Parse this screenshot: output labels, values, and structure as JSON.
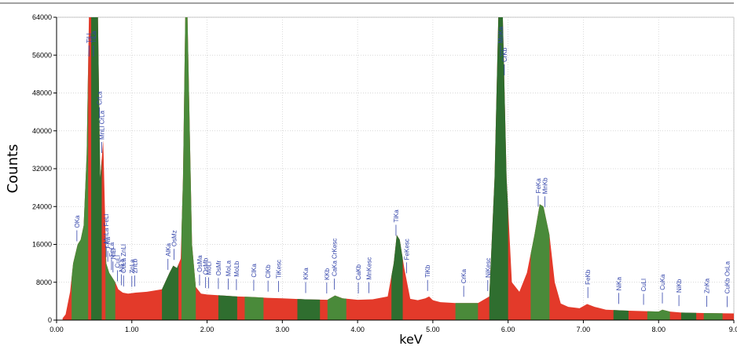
{
  "chart_data": {
    "type": "area",
    "title": "",
    "xlabel": "keV",
    "ylabel": "Counts",
    "xlim": [
      0,
      9
    ],
    "ylim": [
      0,
      64000
    ],
    "grid": true,
    "x_ticks": [
      "0.00",
      "1.00",
      "2.00",
      "3.00",
      "4.00",
      "5.00",
      "6.00",
      "7.00",
      "8.00",
      "9.0"
    ],
    "y_ticks": [
      "0",
      "8000",
      "16000",
      "24000",
      "32000",
      "40000",
      "48000",
      "56000",
      "64000"
    ],
    "colors": {
      "spectrum": "#e33a2a",
      "peak_fill": "#2f6e2f",
      "peak_fill_light": "#4a8a3a",
      "label": "#3344aa",
      "grid": "#cccccc"
    },
    "spectrum": {
      "x": [
        0.08,
        0.12,
        0.18,
        0.22,
        0.28,
        0.32,
        0.36,
        0.4,
        0.43,
        0.46,
        0.49,
        0.52,
        0.55,
        0.58,
        0.62,
        0.66,
        0.7,
        0.74,
        0.78,
        0.82,
        0.88,
        0.95,
        1.05,
        1.2,
        1.4,
        1.5,
        1.55,
        1.6,
        1.65,
        1.68,
        1.71,
        1.74,
        1.77,
        1.8,
        1.85,
        1.92,
        2.0,
        2.2,
        2.4,
        2.6,
        2.8,
        3.0,
        3.3,
        3.6,
        3.7,
        3.8,
        4.0,
        4.2,
        4.4,
        4.48,
        4.52,
        4.56,
        4.62,
        4.7,
        4.8,
        4.9,
        4.95,
        5.0,
        5.1,
        5.3,
        5.6,
        5.75,
        5.82,
        5.87,
        5.9,
        5.93,
        5.98,
        6.05,
        6.15,
        6.25,
        6.35,
        6.42,
        6.47,
        6.55,
        6.62,
        6.7,
        6.8,
        6.95,
        7.05,
        7.15,
        7.3,
        7.6,
        8.0,
        8.05,
        8.15,
        8.3,
        8.6,
        9.0
      ],
      "y": [
        400,
        1200,
        6000,
        12000,
        16000,
        17000,
        20000,
        35000,
        64000,
        64000,
        64000,
        64000,
        64000,
        30000,
        38000,
        12000,
        10000,
        9000,
        8000,
        6500,
        5800,
        5600,
        5800,
        6000,
        6500,
        10000,
        11500,
        11000,
        13000,
        30000,
        64000,
        64000,
        40000,
        16000,
        7000,
        5600,
        5400,
        5200,
        5000,
        4900,
        4700,
        4600,
        4400,
        4300,
        5200,
        4600,
        4300,
        4400,
        5000,
        12000,
        18000,
        17000,
        11000,
        4500,
        4200,
        4600,
        5000,
        4200,
        3800,
        3600,
        3600,
        5000,
        30000,
        64000,
        64000,
        64000,
        30000,
        8000,
        6000,
        10000,
        18000,
        24500,
        24000,
        18000,
        8000,
        3500,
        2800,
        2500,
        3400,
        2800,
        2200,
        2000,
        1800,
        2200,
        1800,
        1600,
        1500,
        1400
      ]
    },
    "green_regions": [
      [
        0.2,
        0.42
      ],
      [
        0.46,
        0.6
      ],
      [
        0.65,
        0.78
      ],
      [
        1.4,
        1.62
      ],
      [
        1.66,
        1.85
      ],
      [
        2.15,
        2.4
      ],
      [
        2.5,
        2.75
      ],
      [
        3.2,
        3.5
      ],
      [
        3.6,
        3.85
      ],
      [
        4.45,
        4.6
      ],
      [
        5.3,
        5.6
      ],
      [
        5.75,
        6.0
      ],
      [
        6.3,
        6.55
      ],
      [
        7.4,
        7.6
      ],
      [
        7.85,
        8.15
      ],
      [
        8.3,
        8.5
      ],
      [
        8.6,
        8.85
      ]
    ],
    "annotations": [
      {
        "text": "OKa",
        "x": 0.27
      },
      {
        "text": "TiLl",
        "x": 0.43
      },
      {
        "text": "TiLa",
        "x": 0.49
      },
      {
        "text": "CrLa",
        "x": 0.57
      },
      {
        "text": "MnLl CrLa",
        "x": 0.6
      },
      {
        "text": "MnLa FeLl",
        "x": 0.66
      },
      {
        "text": "FeLa",
        "x": 0.73
      },
      {
        "text": "FKa",
        "x": 0.68
      },
      {
        "text": "NiLl",
        "x": 0.75
      },
      {
        "text": "CuLl",
        "x": 0.81
      },
      {
        "text": "CuLa ZnLl",
        "x": 0.89
      },
      {
        "text": "NiLa",
        "x": 0.86
      },
      {
        "text": "ZnLa",
        "x": 1.0
      },
      {
        "text": "ZnLb",
        "x": 1.04
      },
      {
        "text": "AlKa",
        "x": 1.48
      },
      {
        "text": "OsMz",
        "x": 1.56
      },
      {
        "text": "OsMa",
        "x": 1.9
      },
      {
        "text": "OsMb",
        "x": 1.98
      },
      {
        "text": "MoLl",
        "x": 2.02
      },
      {
        "text": "OsMr",
        "x": 2.15
      },
      {
        "text": "MoLa",
        "x": 2.28
      },
      {
        "text": "MoLb",
        "x": 2.39
      },
      {
        "text": "ClKa",
        "x": 2.62
      },
      {
        "text": "ClKb",
        "x": 2.81
      },
      {
        "text": "TiKesc",
        "x": 2.95
      },
      {
        "text": "KKa",
        "x": 3.31
      },
      {
        "text": "KKb",
        "x": 3.59
      },
      {
        "text": "CaKa CrKesc",
        "x": 3.69
      },
      {
        "text": "CaKb",
        "x": 4.01
      },
      {
        "text": "MnKesc",
        "x": 4.15
      },
      {
        "text": "TiKa",
        "x": 4.51
      },
      {
        "text": "FeKesc",
        "x": 4.65
      },
      {
        "text": "TiKb",
        "x": 4.93
      },
      {
        "text": "CrKa",
        "x": 5.41
      },
      {
        "text": "NiKesc",
        "x": 5.73
      },
      {
        "text": "MnKa",
        "x": 5.9
      },
      {
        "text": "CrKb",
        "x": 5.95
      },
      {
        "text": "FeKa",
        "x": 6.4
      },
      {
        "text": "MnKb",
        "x": 6.49
      },
      {
        "text": "FeKb",
        "x": 7.06
      },
      {
        "text": "NiKa",
        "x": 7.47
      },
      {
        "text": "CuLl",
        "x": 7.8
      },
      {
        "text": "CuKa",
        "x": 8.05
      },
      {
        "text": "NiKb",
        "x": 8.27
      },
      {
        "text": "ZnKa",
        "x": 8.64
      },
      {
        "text": "CuKb OsLa",
        "x": 8.91
      }
    ]
  }
}
